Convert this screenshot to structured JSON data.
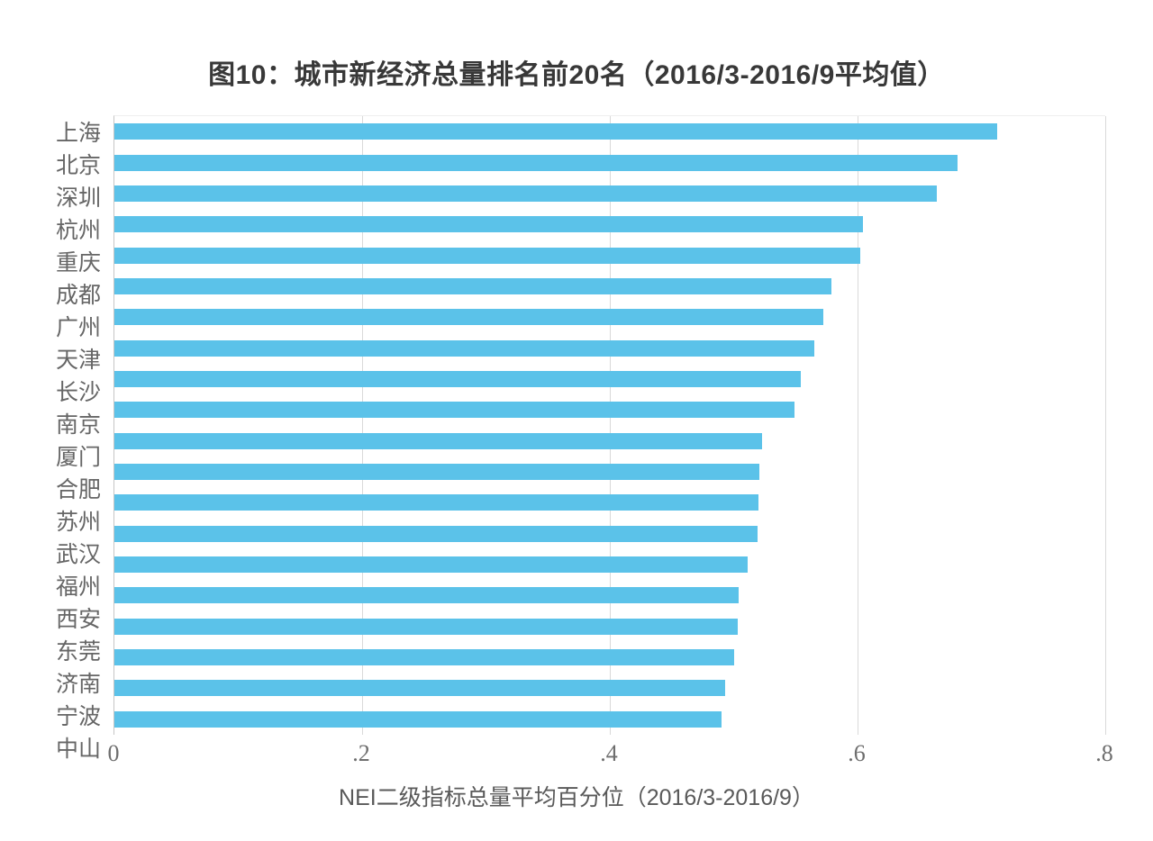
{
  "title": "图10：城市新经济总量排名前20名（2016/3-2016/9平均值）",
  "chart_data": {
    "type": "bar",
    "orientation": "horizontal",
    "title": "图10：城市新经济总量排名前20名（2016/3-2016/9平均值）",
    "categories": [
      "上海",
      "北京",
      "深圳",
      "杭州",
      "重庆",
      "成都",
      "广州",
      "天津",
      "长沙",
      "南京",
      "厦门",
      "合肥",
      "苏州",
      "武汉",
      "福州",
      "西安",
      "东莞",
      "济南",
      "宁波",
      "中山"
    ],
    "values": [
      0.713,
      0.681,
      0.664,
      0.604,
      0.602,
      0.579,
      0.572,
      0.565,
      0.554,
      0.549,
      0.523,
      0.521,
      0.52,
      0.519,
      0.511,
      0.504,
      0.503,
      0.5,
      0.493,
      0.49
    ],
    "xlabel": "NEI二级指标总量平均百分位（2016/3-2016/9）",
    "ylabel": "",
    "xlim": [
      0,
      0.8
    ],
    "xticks": [
      {
        "value": 0.0,
        "label": "0"
      },
      {
        "value": 0.2,
        "label": ".2"
      },
      {
        "value": 0.4,
        "label": ".4"
      },
      {
        "value": 0.6,
        "label": ".6"
      },
      {
        "value": 0.8,
        "label": ".8"
      }
    ],
    "gridlines": [
      0.2,
      0.4,
      0.6,
      0.8
    ],
    "grid": "vertical-only",
    "legend": "none",
    "bar_color": "#5bc2e9",
    "gridline_color": "#d9d9d9",
    "axis_line_color": "#c6c6c6",
    "label_color": "#666666",
    "tick_color": "#6e6e6e",
    "title_color": "#383838"
  }
}
